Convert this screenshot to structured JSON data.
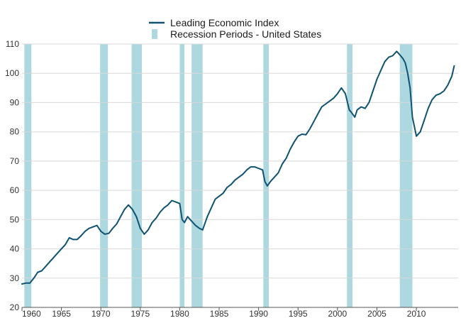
{
  "chart_data": {
    "type": "line",
    "title": "",
    "xlabel": "",
    "ylabel": "",
    "xlim": [
      1960,
      2015.3
    ],
    "ylim": [
      20,
      110
    ],
    "x_ticks": [
      1960,
      1965,
      1970,
      1975,
      1980,
      1985,
      1990,
      1995,
      2000,
      2005,
      2010
    ],
    "x_tick_labels": [
      "1960",
      "1965",
      "1970",
      "1975",
      "1980",
      "1985",
      "1990",
      "1995",
      "2000",
      "2005",
      "2010"
    ],
    "y_ticks": [
      20,
      30,
      40,
      50,
      60,
      70,
      80,
      90,
      100,
      110
    ],
    "y_tick_labels": [
      "20",
      "30",
      "40",
      "50",
      "60",
      "70",
      "80",
      "90",
      "100",
      "110"
    ],
    "grid": true,
    "legend": {
      "placement": "top-center"
    },
    "series": [
      {
        "name": "Leading Economic Index",
        "color": "#0f5272",
        "x": [
          1960.0,
          1960.5,
          1961.0,
          1961.5,
          1962.0,
          1962.5,
          1963.0,
          1963.5,
          1964.0,
          1964.5,
          1965.0,
          1965.5,
          1966.0,
          1966.5,
          1967.0,
          1967.5,
          1968.0,
          1968.5,
          1969.0,
          1969.5,
          1970.0,
          1970.5,
          1971.0,
          1971.5,
          1972.0,
          1972.5,
          1973.0,
          1973.5,
          1974.0,
          1974.5,
          1975.0,
          1975.5,
          1976.0,
          1976.5,
          1977.0,
          1977.5,
          1978.0,
          1978.5,
          1979.0,
          1979.5,
          1980.0,
          1980.3,
          1980.6,
          1981.0,
          1981.5,
          1982.0,
          1982.5,
          1982.9,
          1983.5,
          1984.0,
          1984.5,
          1985.0,
          1985.5,
          1986.0,
          1986.5,
          1987.0,
          1987.5,
          1988.0,
          1988.5,
          1989.0,
          1989.5,
          1990.0,
          1990.5,
          1990.8,
          1991.1,
          1991.5,
          1992.0,
          1992.5,
          1993.0,
          1993.5,
          1994.0,
          1994.5,
          1995.0,
          1995.5,
          1996.0,
          1996.5,
          1997.0,
          1997.5,
          1998.0,
          1998.5,
          1999.0,
          1999.5,
          2000.0,
          2000.5,
          2001.0,
          2001.5,
          2001.8,
          2002.2,
          2002.5,
          2003.0,
          2003.5,
          2004.0,
          2004.5,
          2005.0,
          2005.5,
          2006.0,
          2006.5,
          2007.0,
          2007.5,
          2008.0,
          2008.3,
          2008.6,
          2008.9,
          2009.2,
          2009.5,
          2010.0,
          2010.5,
          2011.0,
          2011.5,
          2012.0,
          2012.5,
          2013.0,
          2013.5,
          2014.0,
          2014.5,
          2014.8
        ],
        "y": [
          28.0,
          28.3,
          28.3,
          30.0,
          32.0,
          32.5,
          34.0,
          35.5,
          37.0,
          38.5,
          40.0,
          41.5,
          43.8,
          43.2,
          43.2,
          44.5,
          46.0,
          47.0,
          47.5,
          48.0,
          46.0,
          45.0,
          45.3,
          47.0,
          48.5,
          51.0,
          53.5,
          55.0,
          53.5,
          51.0,
          47.0,
          45.0,
          46.5,
          49.0,
          50.5,
          52.5,
          54.0,
          55.0,
          56.5,
          56.0,
          55.5,
          50.0,
          49.0,
          51.0,
          49.5,
          48.0,
          47.0,
          46.5,
          51.0,
          54.0,
          57.0,
          58.0,
          59.0,
          61.0,
          62.0,
          63.5,
          64.5,
          65.5,
          67.0,
          68.0,
          68.0,
          67.5,
          67.0,
          63.0,
          61.5,
          63.0,
          64.5,
          66.0,
          69.0,
          71.0,
          74.0,
          76.5,
          78.5,
          79.2,
          79.0,
          81.0,
          83.5,
          86.0,
          88.5,
          89.5,
          90.5,
          91.5,
          93.0,
          95.0,
          93.0,
          87.5,
          86.5,
          85.0,
          87.5,
          88.5,
          88.0,
          90.0,
          94.0,
          98.0,
          101.0,
          104.0,
          105.5,
          106.0,
          107.5,
          106.0,
          105.0,
          103.5,
          100.0,
          95.0,
          85.0,
          78.5,
          80.0,
          84.0,
          88.0,
          91.0,
          92.5,
          93.0,
          94.0,
          96.0,
          99.0,
          102.5
        ]
      },
      {
        "name": "Recession Periods - United States",
        "color": "#add8e0",
        "periods": [
          [
            1960.3,
            1961.2
          ],
          [
            1969.9,
            1970.9
          ],
          [
            1973.9,
            1975.2
          ],
          [
            1980.0,
            1980.6
          ],
          [
            1981.5,
            1982.9
          ],
          [
            1990.6,
            1991.3
          ],
          [
            2001.2,
            2001.9
          ],
          [
            2007.9,
            2009.5
          ]
        ]
      }
    ]
  }
}
